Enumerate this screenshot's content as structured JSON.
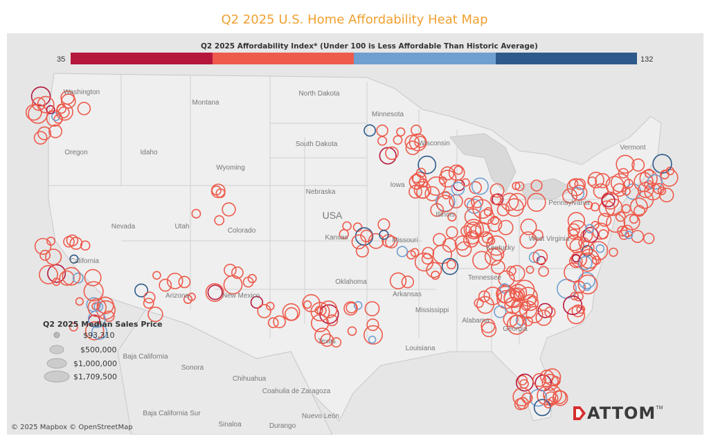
{
  "title": "Q2 2025 U.S. Home Affordability Heat Map",
  "color_legend": {
    "title": "Q2 2025 Affordability Index* (Under 100 is Less Affordable Than Historic Average)",
    "min": "35",
    "max": "132",
    "colors": [
      "#b5163c",
      "#ee5a4b",
      "#6f9fd0",
      "#2d5a8a"
    ]
  },
  "size_legend": {
    "title": "Q2 2025 Median Sales Price",
    "items": [
      "$93,310",
      "$500,000",
      "$1,000,000",
      "$1,709,500"
    ]
  },
  "labels": {
    "usa": "USA",
    "states": [
      "Washington",
      "Oregon",
      "Idaho",
      "Montana",
      "Wyoming",
      "Nevada",
      "Utah",
      "Colorado",
      "California",
      "Arizona",
      "New Mexico",
      "North Dakota",
      "South Dakota",
      "Nebraska",
      "Kansas",
      "Oklahoma",
      "Texas",
      "Minnesota",
      "Iowa",
      "Missouri",
      "Arkansas",
      "Louisiana",
      "Mississippi",
      "Alabama",
      "Georgia",
      "Tennessee",
      "Kentucky",
      "Illinois",
      "Wisconsin",
      "Pennsylvania",
      "Vermont",
      "West Virginia"
    ],
    "mexico": [
      "Baja California",
      "Sonora",
      "Chihuahua",
      "Coahuila de Zaragoza",
      "Nuevo León",
      "Sinaloa",
      "Durango",
      "Baja California Sur"
    ]
  },
  "attribution": "© 2025 Mapbox © OpenStreetMap",
  "logo": "ATTOM"
}
